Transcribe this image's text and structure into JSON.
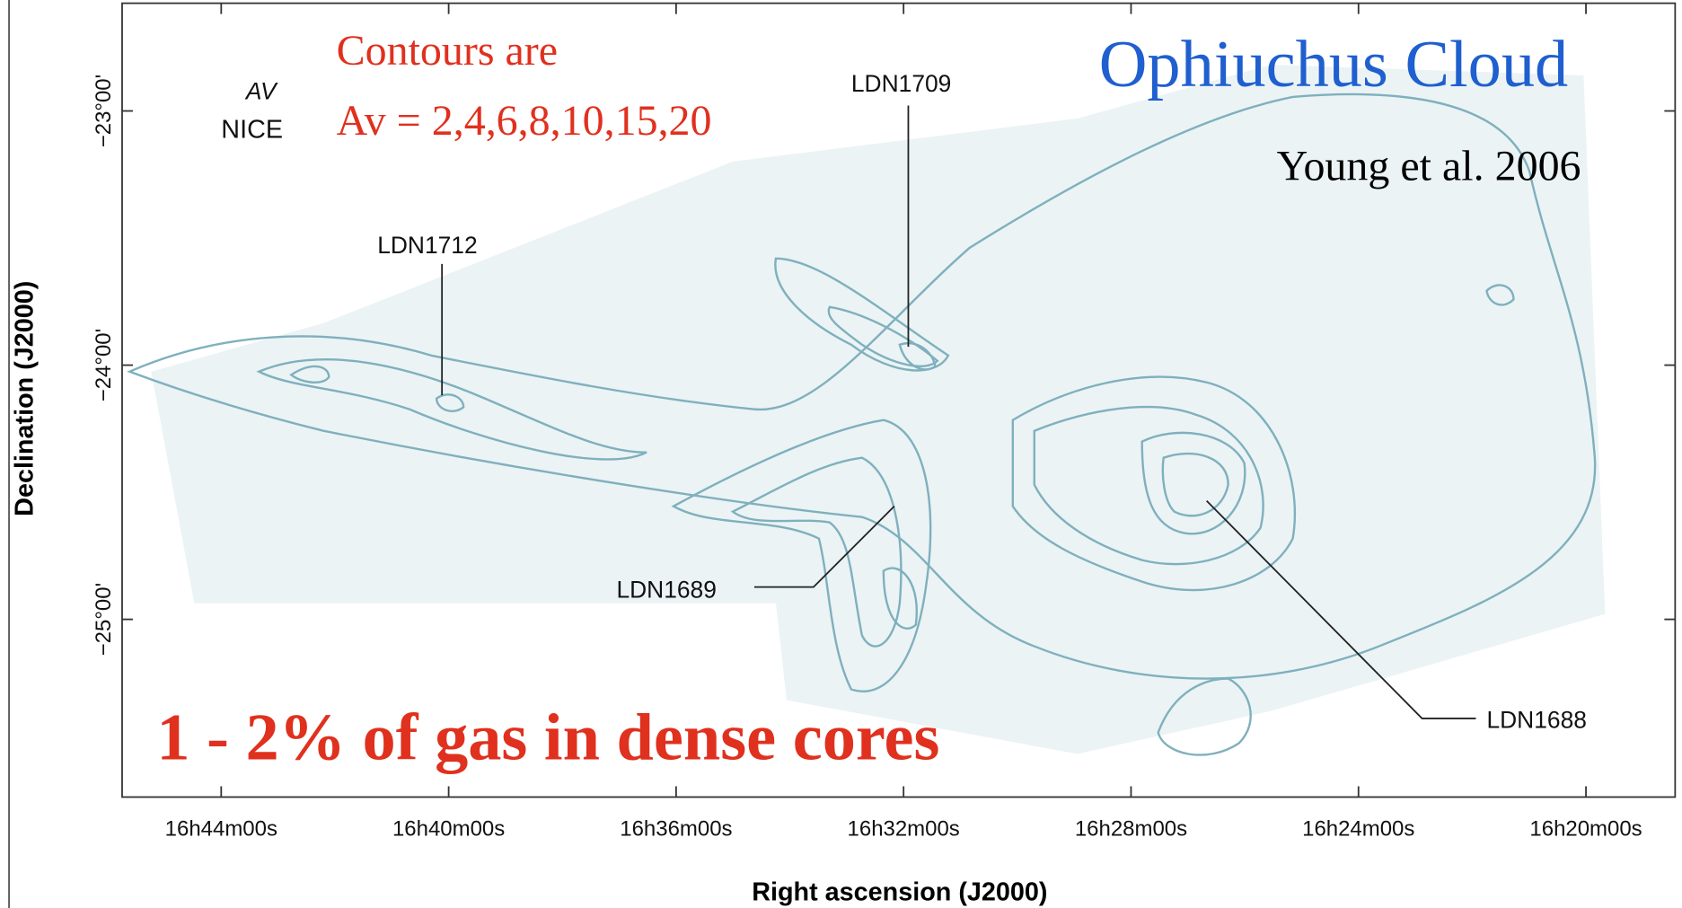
{
  "figure": {
    "title": "Ophiuchus Cloud",
    "credit": "Young et al. 2006",
    "note_line1": "Contours are",
    "note_line2": "Av = 2,4,6,8,10,15,20",
    "map_label_line1": "AV",
    "map_label_line2": "NICE",
    "headline": "1 - 2% of gas in dense cores",
    "x_label": "Right ascension (J2000)",
    "y_label": "Declination (J2000)",
    "x_ticks": [
      "16h44m00s",
      "16h40m00s",
      "16h36m00s",
      "16h32m00s",
      "16h28m00s",
      "16h24m00s",
      "16h20m00s"
    ],
    "y_ticks": [
      "−23°00'",
      "−24°00'",
      "−25°00'"
    ],
    "regions": [
      "LDN1709",
      "LDN1712",
      "LDN1689",
      "LDN1688"
    ]
  }
}
